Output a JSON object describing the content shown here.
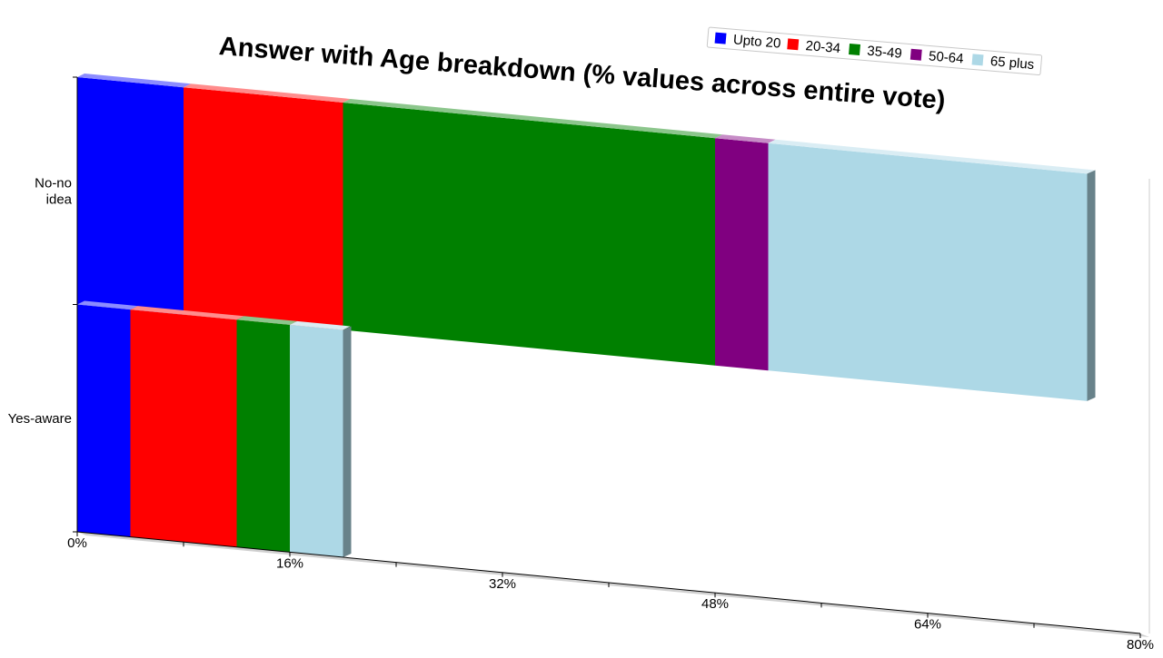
{
  "chart_data": {
    "type": "bar",
    "orientation": "horizontal",
    "stacked": true,
    "perspective_3d": true,
    "title": "Answer with Age breakdown (% values across entire vote)",
    "categories": [
      "No-no idea",
      "Yes-aware"
    ],
    "category_labels": [
      [
        "No-no",
        "idea"
      ],
      [
        "Yes-aware"
      ]
    ],
    "series": [
      {
        "name": "Upto 20",
        "color": "#0000ff",
        "values": [
          8,
          4
        ]
      },
      {
        "name": "20-34",
        "color": "#ff0000",
        "values": [
          12,
          8
        ]
      },
      {
        "name": "35-49",
        "color": "#008000",
        "values": [
          28,
          4
        ]
      },
      {
        "name": "50-64",
        "color": "#800080",
        "values": [
          4,
          0
        ]
      },
      {
        "name": "65 plus",
        "color": "#add8e6",
        "values": [
          24,
          4
        ]
      }
    ],
    "xlim": [
      0,
      80
    ],
    "x_ticks": [
      "0%",
      "16%",
      "32%",
      "48%",
      "64%",
      "80%"
    ],
    "tick_values": [
      0,
      16,
      32,
      48,
      64,
      80
    ],
    "legend_position": "top-right",
    "grid": false
  }
}
